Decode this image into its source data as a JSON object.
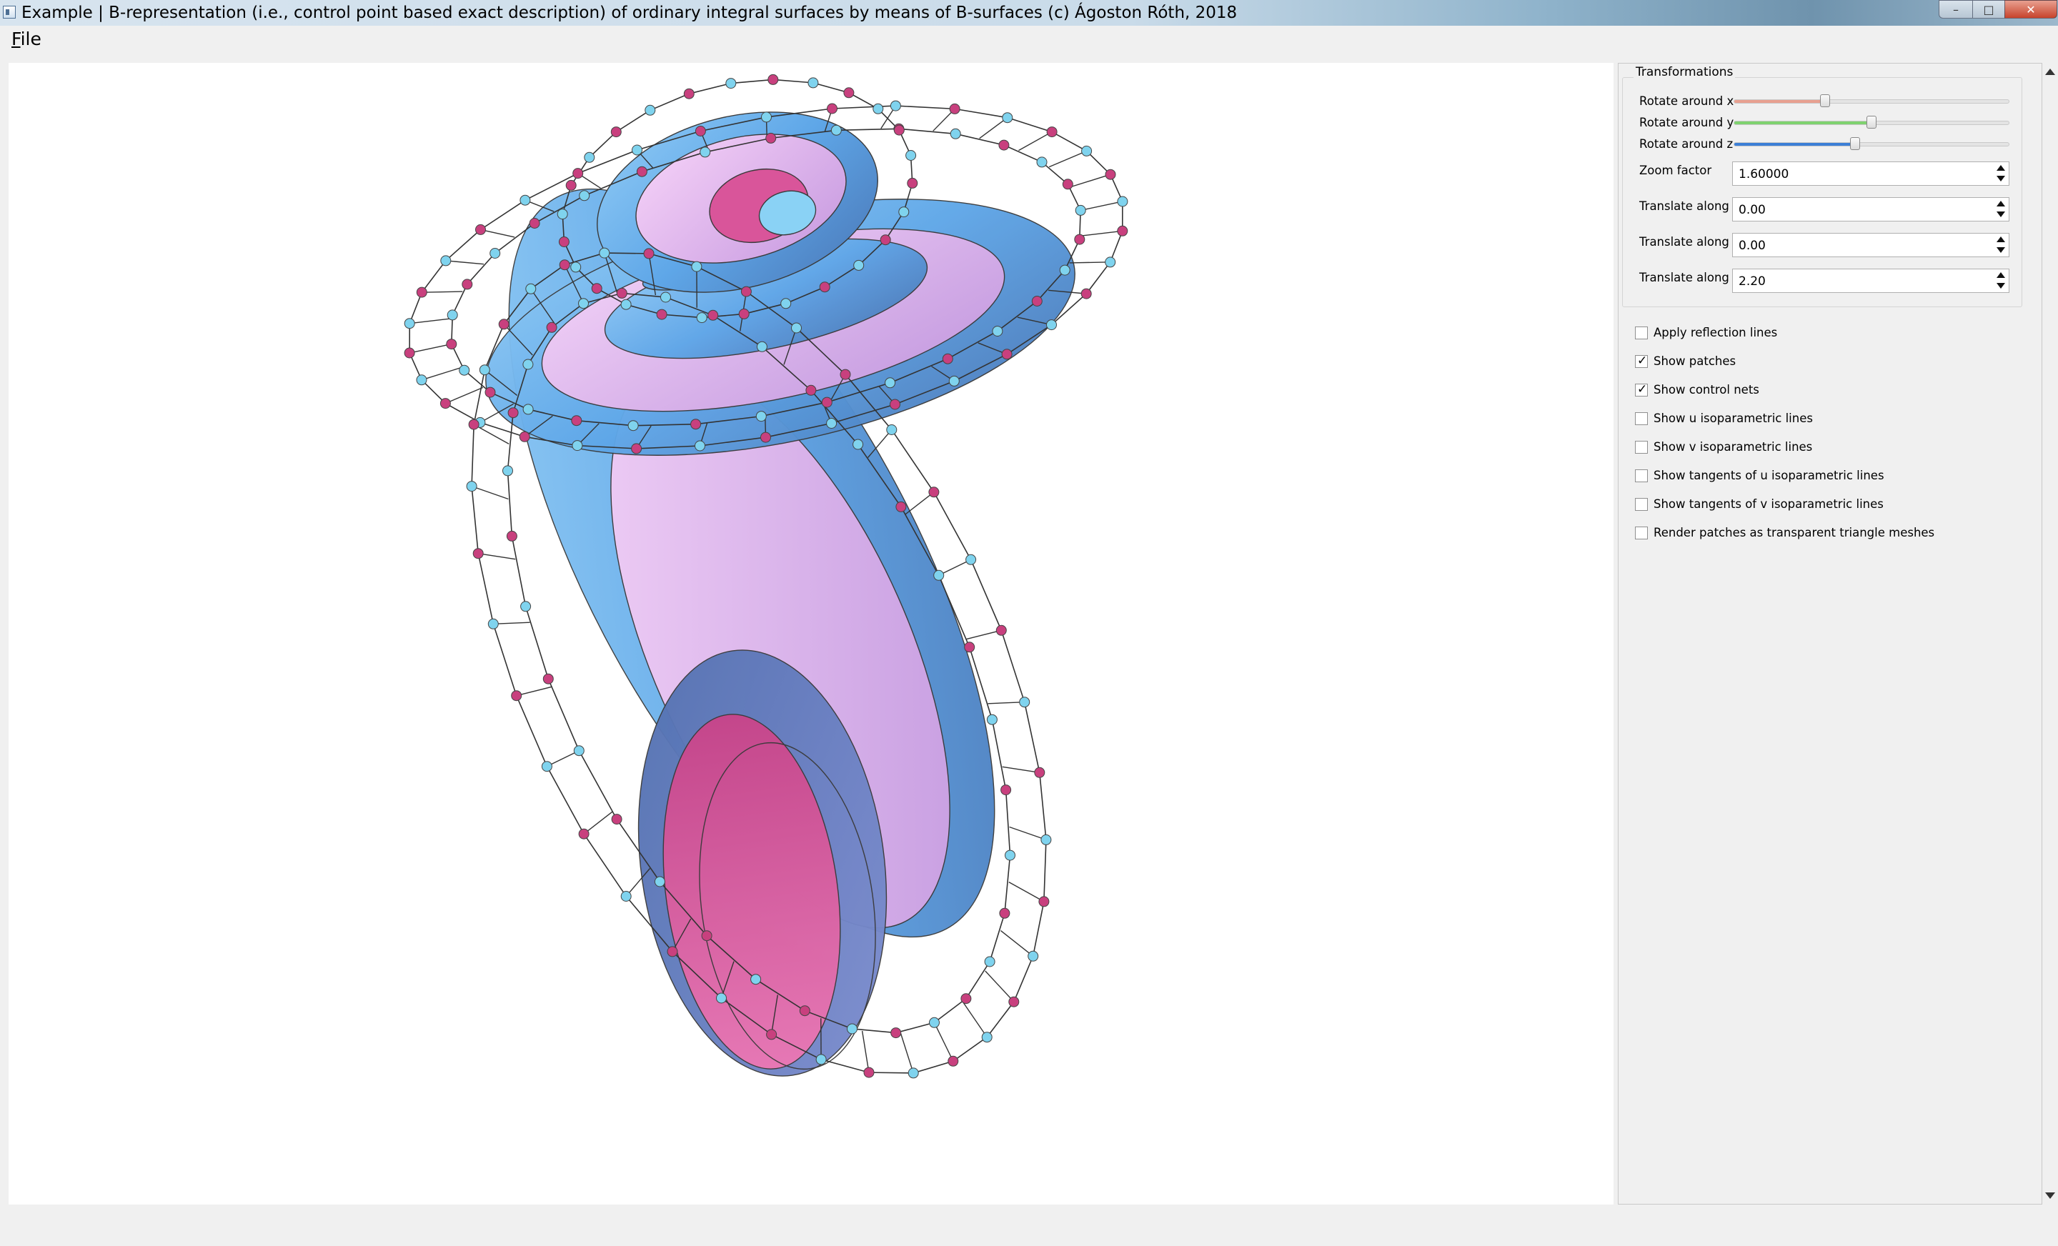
{
  "window": {
    "title": "Example | B-representation (i.e., control point based exact description) of ordinary integral surfaces by means of B-surfaces (c) Ágoston Róth, 2018",
    "buttons": {
      "minimize": "–",
      "maximize": "□",
      "close": "✕"
    }
  },
  "menu": {
    "file": "File"
  },
  "panel": {
    "group_title": "Transformations",
    "sliders": [
      {
        "label": "Rotate around x",
        "value": 0.33,
        "color": "#e8a090"
      },
      {
        "label": "Rotate around y",
        "value": 0.5,
        "color": "#7fd26f"
      },
      {
        "label": "Rotate around z",
        "value": 0.44,
        "color": "#3c7fd6"
      }
    ],
    "spinboxes": [
      {
        "label": "Zoom factor",
        "value": "1.60000"
      },
      {
        "label": "Translate along x",
        "value": "0.00"
      },
      {
        "label": "Translate along y",
        "value": "0.00"
      },
      {
        "label": "Translate along z",
        "value": "2.20"
      }
    ],
    "checkboxes": [
      {
        "label": "Apply reflection lines",
        "checked": false
      },
      {
        "label": "Show patches",
        "checked": true
      },
      {
        "label": "Show control nets",
        "checked": true
      },
      {
        "label": "Show u isoparametric lines",
        "checked": false
      },
      {
        "label": "Show v isoparametric lines",
        "checked": false
      },
      {
        "label": "Show tangents of u isoparametric lines",
        "checked": false
      },
      {
        "label": "Show tangents of v isoparametric lines",
        "checked": false
      },
      {
        "label": "Render patches as transparent triangle meshes",
        "checked": false
      }
    ]
  },
  "scene": {
    "patch_colors": [
      "#6fb3ee",
      "#e7b3ef",
      "#5a7dc0",
      "#d9559a"
    ],
    "control_point_colors": [
      "#7fd3ee",
      "#c8407e"
    ],
    "net_color": "#333333"
  }
}
